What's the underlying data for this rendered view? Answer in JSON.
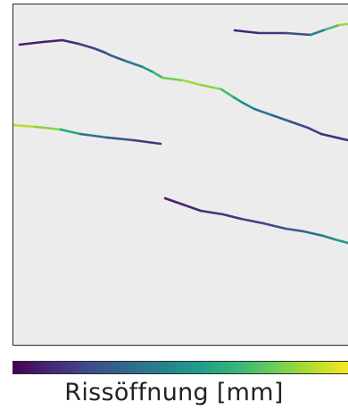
{
  "chart_data": {
    "type": "line",
    "title": "",
    "colorbar_label": "Rissöffnung [mm]",
    "colormap": [
      "#440154",
      "#482878",
      "#3e4a89",
      "#31688e",
      "#26828e",
      "#1f9e89",
      "#35b779",
      "#6ece58",
      "#b5de2b",
      "#fde725"
    ],
    "grid": false,
    "axes_visible": false,
    "series": [
      {
        "x": [
          22,
          48,
          70,
          88,
          105,
          118,
          124,
          140,
          160,
          172,
          182,
          205,
          225,
          248,
          262,
          272,
          285,
          305,
          325,
          345,
          360,
          390
        ],
        "y": [
          50,
          47,
          45,
          49,
          54,
          59,
          62,
          68,
          75,
          81,
          87,
          90,
          95,
          100,
          109,
          115,
          122,
          129,
          136,
          143,
          150,
          157
        ],
        "c": [
          0.08,
          0.08,
          0.09,
          0.14,
          0.2,
          0.24,
          0.25,
          0.35,
          0.48,
          0.6,
          0.72,
          0.85,
          0.88,
          0.78,
          0.6,
          0.5,
          0.45,
          0.35,
          0.25,
          0.2,
          0.15,
          0.12
        ]
      },
      {
        "x": [
          263,
          290,
          320,
          348,
          365,
          380,
          390
        ],
        "y": [
          34,
          37,
          37,
          39,
          33,
          28,
          27
        ],
        "c": [
          0.08,
          0.12,
          0.18,
          0.3,
          0.6,
          0.8,
          0.9
        ]
      },
      {
        "x": [
          14,
          40,
          68,
          90,
          120,
          150,
          180
        ],
        "y": [
          140,
          142,
          145,
          150,
          154,
          157,
          161
        ],
        "c": [
          0.9,
          0.88,
          0.75,
          0.45,
          0.32,
          0.22,
          0.12
        ]
      },
      {
        "x": [
          185,
          205,
          225,
          250,
          270,
          295,
          320,
          340,
          362,
          375,
          390
        ],
        "y": [
          222,
          229,
          236,
          240,
          245,
          250,
          256,
          259,
          264,
          268,
          272
        ],
        "c": [
          0.08,
          0.1,
          0.12,
          0.15,
          0.18,
          0.22,
          0.25,
          0.3,
          0.4,
          0.5,
          0.6
        ]
      }
    ]
  }
}
